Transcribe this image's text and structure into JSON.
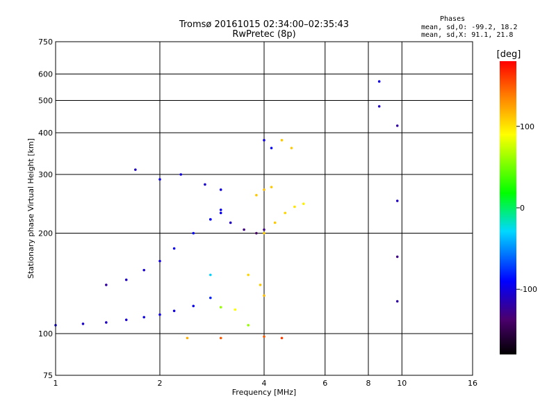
{
  "chart_data": {
    "type": "scatter",
    "title": "Tromsø 20161015 02:34:00–02:35:43",
    "subtitle": "RwPretec (8p)",
    "xlabel": "Frequency [MHz]",
    "ylabel": "Stationary phase Virtual Height [km]",
    "x_scale": "log",
    "y_scale": "log",
    "xlim": [
      1,
      16
    ],
    "ylim": [
      75,
      750
    ],
    "x_ticks": [
      1,
      2,
      4,
      6,
      8,
      10,
      16
    ],
    "x_tick_labels": [
      "1",
      "2",
      "4",
      "6",
      "8",
      "10",
      "16"
    ],
    "y_ticks": [
      75,
      100,
      200,
      300,
      400,
      500,
      600,
      750
    ],
    "y_tick_labels": [
      "75",
      "100",
      "200",
      "300",
      "400",
      "500",
      "600",
      "750"
    ],
    "grid": true,
    "stats": {
      "heading": "Phases",
      "line_o": "mean, sd,O: -99.2, 18.2",
      "line_x": "mean, sd,X:  91.1, 21.8"
    },
    "colorbar": {
      "label": "[deg]",
      "min": -180,
      "max": 180,
      "ticks": [
        100,
        0,
        -100
      ],
      "tick_labels": [
        "100",
        "0",
        "-100"
      ]
    },
    "series": [
      {
        "points": [
          [
            1.0,
            106,
            -100
          ],
          [
            1.2,
            107,
            -105
          ],
          [
            1.4,
            108,
            -110
          ],
          [
            1.6,
            110,
            -105
          ],
          [
            1.8,
            112,
            -100
          ],
          [
            2.0,
            114,
            -100
          ],
          [
            2.2,
            117,
            -100
          ],
          [
            2.5,
            121,
            -95
          ],
          [
            2.8,
            128,
            -80
          ]
        ]
      },
      {
        "points": [
          [
            1.4,
            140,
            -120
          ],
          [
            1.6,
            145,
            -110
          ],
          [
            1.8,
            155,
            -105
          ],
          [
            2.0,
            165,
            -100
          ],
          [
            2.2,
            180,
            -95
          ],
          [
            2.5,
            200,
            -90
          ],
          [
            2.8,
            220,
            -90
          ],
          [
            3.0,
            235,
            -95
          ]
        ]
      },
      {
        "points": [
          [
            1.7,
            310,
            -110
          ],
          [
            2.0,
            290,
            -100
          ],
          [
            2.3,
            300,
            -100
          ],
          [
            2.7,
            280,
            -105
          ],
          [
            3.0,
            270,
            -100
          ]
        ]
      },
      {
        "points": [
          [
            2.8,
            220,
            -90
          ],
          [
            3.0,
            230,
            -95
          ],
          [
            3.2,
            215,
            -110
          ],
          [
            3.5,
            205,
            -130
          ],
          [
            3.8,
            200,
            -140
          ],
          [
            4.0,
            205,
            -130
          ]
        ]
      },
      {
        "points": [
          [
            2.8,
            150,
            -30
          ],
          [
            3.0,
            120,
            60
          ],
          [
            3.3,
            118,
            90
          ],
          [
            3.6,
            150,
            105
          ],
          [
            3.9,
            140,
            110
          ],
          [
            4.0,
            130,
            115
          ]
        ]
      },
      {
        "points": [
          [
            4.0,
            200,
            110
          ],
          [
            4.3,
            215,
            110
          ],
          [
            4.6,
            230,
            105
          ],
          [
            4.9,
            240,
            100
          ],
          [
            5.2,
            245,
            95
          ]
        ]
      },
      {
        "points": [
          [
            3.8,
            260,
            110
          ],
          [
            4.0,
            270,
            115
          ],
          [
            4.2,
            275,
            110
          ]
        ]
      },
      {
        "points": [
          [
            4.0,
            380,
            -100
          ],
          [
            4.2,
            360,
            -90
          ],
          [
            4.5,
            380,
            110
          ],
          [
            4.8,
            360,
            110
          ]
        ]
      },
      {
        "points": [
          [
            2.4,
            97,
            120
          ],
          [
            3.0,
            97,
            150
          ],
          [
            3.6,
            106,
            60
          ],
          [
            4.0,
            98,
            150
          ],
          [
            4.5,
            97,
            160
          ]
        ]
      },
      {
        "points": [
          [
            8.6,
            570,
            -100
          ],
          [
            8.6,
            480,
            -110
          ],
          [
            9.7,
            420,
            -120
          ],
          [
            9.7,
            250,
            -110
          ],
          [
            9.7,
            170,
            -130
          ],
          [
            9.7,
            125,
            -120
          ]
        ]
      }
    ]
  }
}
